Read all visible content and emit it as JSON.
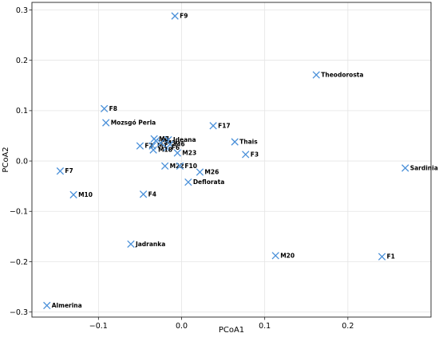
{
  "chart_data": {
    "type": "scatter",
    "title": "",
    "xlabel": "PCoA1",
    "ylabel": "PCoA2",
    "xlim": [
      -0.18,
      0.3
    ],
    "ylim": [
      -0.31,
      0.315
    ],
    "x_ticks": [
      -0.1,
      0.0,
      0.1,
      0.2
    ],
    "x_tick_labels": [
      "−0.1",
      "0.0",
      "0.1",
      "0.2"
    ],
    "y_ticks": [
      -0.3,
      -0.2,
      -0.1,
      0.0,
      0.1,
      0.2,
      0.3
    ],
    "y_tick_labels": [
      "−0.3",
      "−0.2",
      "−0.1",
      "0.0",
      "0.1",
      "0.2",
      "0.3"
    ],
    "grid": true,
    "marker_color": "#4a90d9",
    "marker": "x",
    "points": [
      {
        "label": "F9",
        "x": -0.008,
        "y": 0.288
      },
      {
        "label": "Theodorosta",
        "x": 0.162,
        "y": 0.171
      },
      {
        "label": "F8",
        "x": -0.093,
        "y": 0.104
      },
      {
        "label": "Mozsgó Perla",
        "x": -0.091,
        "y": 0.076
      },
      {
        "label": "F17",
        "x": 0.038,
        "y": 0.07
      },
      {
        "label": "M7",
        "x": -0.033,
        "y": 0.044
      },
      {
        "label": "M5",
        "x": -0.031,
        "y": 0.04
      },
      {
        "label": "Ideana",
        "x": -0.016,
        "y": 0.042
      },
      {
        "label": "F2",
        "x": -0.05,
        "y": 0.03
      },
      {
        "label": "M1",
        "x": -0.035,
        "y": 0.03
      },
      {
        "label": "M3",
        "x": -0.025,
        "y": 0.036
      },
      {
        "label": "M6",
        "x": -0.014,
        "y": 0.033
      },
      {
        "label": "F6",
        "x": -0.018,
        "y": 0.026
      },
      {
        "label": "M18",
        "x": -0.034,
        "y": 0.022
      },
      {
        "label": "M23",
        "x": -0.005,
        "y": 0.016
      },
      {
        "label": "Thais",
        "x": 0.064,
        "y": 0.038
      },
      {
        "label": "F3",
        "x": 0.077,
        "y": 0.013
      },
      {
        "label": "M22",
        "x": -0.02,
        "y": -0.01
      },
      {
        "label": "F10",
        "x": -0.002,
        "y": -0.01
      },
      {
        "label": "M26",
        "x": 0.022,
        "y": -0.022
      },
      {
        "label": "Deflorata",
        "x": 0.008,
        "y": -0.042
      },
      {
        "label": "Sardinia",
        "x": 0.269,
        "y": -0.014
      },
      {
        "label": "F7",
        "x": -0.146,
        "y": -0.02
      },
      {
        "label": "M10",
        "x": -0.13,
        "y": -0.067
      },
      {
        "label": "F4",
        "x": -0.046,
        "y": -0.066
      },
      {
        "label": "Jadranka",
        "x": -0.061,
        "y": -0.165
      },
      {
        "label": "M20",
        "x": 0.113,
        "y": -0.188
      },
      {
        "label": "F1",
        "x": 0.241,
        "y": -0.19
      },
      {
        "label": "Almerina",
        "x": -0.162,
        "y": -0.287
      }
    ]
  }
}
